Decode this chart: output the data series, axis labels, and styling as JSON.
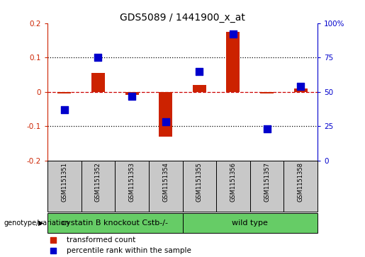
{
  "title": "GDS5089 / 1441900_x_at",
  "samples": [
    "GSM1151351",
    "GSM1151352",
    "GSM1151353",
    "GSM1151354",
    "GSM1151355",
    "GSM1151356",
    "GSM1151357",
    "GSM1151358"
  ],
  "red_values": [
    -0.005,
    0.055,
    -0.008,
    -0.13,
    0.02,
    0.175,
    -0.005,
    0.01
  ],
  "blue_values_pct": [
    37,
    75,
    47,
    28,
    65,
    92,
    23,
    54
  ],
  "ylim_left": [
    -0.2,
    0.2
  ],
  "ylim_right": [
    0,
    100
  ],
  "yticks_left": [
    -0.2,
    -0.1,
    0.0,
    0.1,
    0.2
  ],
  "yticks_right": [
    0,
    25,
    50,
    75,
    100
  ],
  "ytick_labels_left": [
    "-0.2",
    "-0.1",
    "0",
    "0.1",
    "0.2"
  ],
  "ytick_labels_right": [
    "0",
    "25",
    "50",
    "75",
    "100%"
  ],
  "groups": [
    {
      "label": "cystatin B knockout Cstb-/-",
      "start": 0,
      "end": 3
    },
    {
      "label": "wild type",
      "start": 4,
      "end": 7
    }
  ],
  "red_color": "#cc2200",
  "blue_color": "#0000cc",
  "bar_width": 0.4,
  "blue_square_size": 45,
  "legend_label_red": "transformed count",
  "legend_label_blue": "percentile rank within the sample",
  "genotype_label": "genotype/variation",
  "bg_sample_box": "#c8c8c8",
  "green_color": "#66cc66",
  "hline_zero_color": "#cc0000",
  "dotted_color": "#000000",
  "title_fontsize": 10,
  "tick_fontsize": 7.5,
  "sample_fontsize": 6,
  "group_fontsize": 8
}
